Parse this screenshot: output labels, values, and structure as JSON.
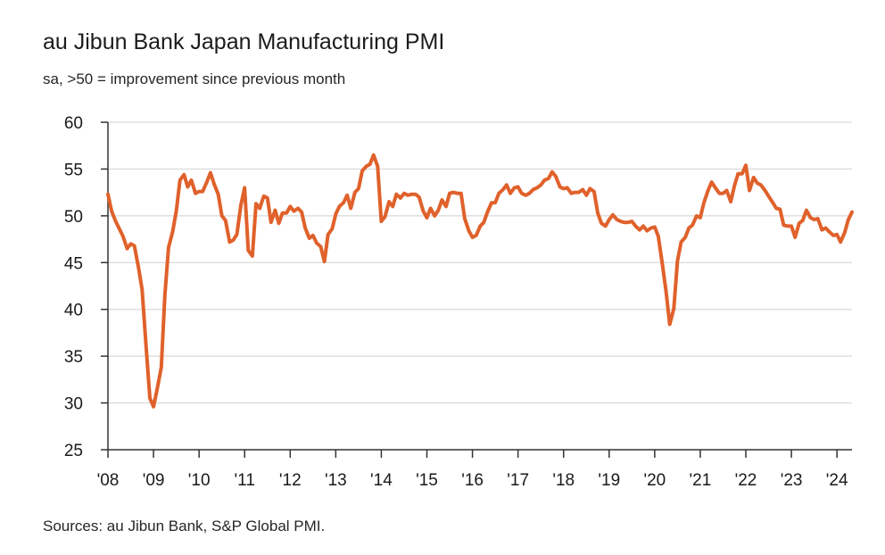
{
  "title": "au Jibun Bank Japan Manufacturing PMI",
  "subtitle": "sa, >50 = improvement since previous month",
  "source": "Sources: au Jibun Bank, S&P Global PMI.",
  "colors": {
    "line": "#e0612b",
    "grid": "#d9d9d9",
    "axis": "#333333"
  },
  "chart_data": {
    "type": "line",
    "title": "au Jibun Bank Japan Manufacturing PMI",
    "subtitle": "sa, >50 = improvement since previous month",
    "xlabel": "",
    "ylabel": "",
    "xlim": [
      2008.0,
      2024.33
    ],
    "ylim": [
      25,
      60
    ],
    "y_ticks": [
      60,
      55,
      50,
      45,
      40,
      35,
      30,
      25
    ],
    "x_ticks": [
      {
        "x": 2008,
        "label": "'08"
      },
      {
        "x": 2009,
        "label": "'09"
      },
      {
        "x": 2010,
        "label": "'10"
      },
      {
        "x": 2011,
        "label": "'11"
      },
      {
        "x": 2012,
        "label": "'12"
      },
      {
        "x": 2013,
        "label": "'13"
      },
      {
        "x": 2014,
        "label": "'14"
      },
      {
        "x": 2015,
        "label": "'15"
      },
      {
        "x": 2016,
        "label": "'16"
      },
      {
        "x": 2017,
        "label": "'17"
      },
      {
        "x": 2018,
        "label": "'18"
      },
      {
        "x": 2019,
        "label": "'19"
      },
      {
        "x": 2020,
        "label": "'20"
      },
      {
        "x": 2021,
        "label": "'21"
      },
      {
        "x": 2022,
        "label": "'22"
      },
      {
        "x": 2023,
        "label": "'23"
      },
      {
        "x": 2024,
        "label": "'24"
      }
    ],
    "grid": true,
    "legend": "none",
    "series": [
      {
        "x": [
          2008.0,
          2008.08,
          2008.17,
          2008.25,
          2008.33,
          2008.42,
          2008.5,
          2008.58,
          2008.67,
          2008.75,
          2008.83,
          2008.92,
          2009.0,
          2009.08,
          2009.17,
          2009.25,
          2009.33,
          2009.42,
          2009.5,
          2009.58,
          2009.67,
          2009.75,
          2009.83,
          2009.92,
          2010.0,
          2010.08,
          2010.17,
          2010.25,
          2010.33,
          2010.42,
          2010.5,
          2010.58,
          2010.67,
          2010.75,
          2010.83,
          2010.92,
          2011.0,
          2011.08,
          2011.17,
          2011.25,
          2011.33,
          2011.42,
          2011.5,
          2011.58,
          2011.67,
          2011.75,
          2011.83,
          2011.92,
          2012.0,
          2012.08,
          2012.17,
          2012.25,
          2012.33,
          2012.42,
          2012.5,
          2012.58,
          2012.67,
          2012.75,
          2012.83,
          2012.92,
          2013.0,
          2013.08,
          2013.17,
          2013.25,
          2013.33,
          2013.42,
          2013.5,
          2013.58,
          2013.67,
          2013.75,
          2013.83,
          2013.92,
          2014.0,
          2014.08,
          2014.17,
          2014.25,
          2014.33,
          2014.42,
          2014.5,
          2014.58,
          2014.67,
          2014.75,
          2014.83,
          2014.92,
          2015.0,
          2015.08,
          2015.17,
          2015.25,
          2015.33,
          2015.42,
          2015.5,
          2015.58,
          2015.67,
          2015.75,
          2015.83,
          2015.92,
          2016.0,
          2016.08,
          2016.17,
          2016.25,
          2016.33,
          2016.42,
          2016.5,
          2016.58,
          2016.67,
          2016.75,
          2016.83,
          2016.92,
          2017.0,
          2017.08,
          2017.17,
          2017.25,
          2017.33,
          2017.42,
          2017.5,
          2017.58,
          2017.67,
          2017.75,
          2017.83,
          2017.92,
          2018.0,
          2018.08,
          2018.17,
          2018.25,
          2018.33,
          2018.42,
          2018.5,
          2018.58,
          2018.67,
          2018.75,
          2018.83,
          2018.92,
          2019.0,
          2019.08,
          2019.17,
          2019.25,
          2019.33,
          2019.42,
          2019.5,
          2019.58,
          2019.67,
          2019.75,
          2019.83,
          2019.92,
          2020.0,
          2020.08,
          2020.17,
          2020.25,
          2020.33,
          2020.42,
          2020.5,
          2020.58,
          2020.67,
          2020.75,
          2020.83,
          2020.92,
          2021.0,
          2021.08,
          2021.17,
          2021.25,
          2021.33,
          2021.42,
          2021.5,
          2021.58,
          2021.67,
          2021.75,
          2021.83,
          2021.92,
          2022.0,
          2022.08,
          2022.17,
          2022.25,
          2022.33,
          2022.42,
          2022.5,
          2022.58,
          2022.67,
          2022.75,
          2022.83,
          2022.92,
          2023.0,
          2023.08,
          2023.17,
          2023.25,
          2023.33,
          2023.42,
          2023.5,
          2023.58,
          2023.67,
          2023.75,
          2023.83,
          2023.92,
          2024.0,
          2024.08,
          2024.17,
          2024.25,
          2024.33
        ],
        "values": [
          52.3,
          50.5,
          49.4,
          48.6,
          47.8,
          46.5,
          47.0,
          46.8,
          44.5,
          42.1,
          36.5,
          30.5,
          29.6,
          31.5,
          33.8,
          41.5,
          46.6,
          48.3,
          50.5,
          53.8,
          54.4,
          53.1,
          53.8,
          52.4,
          52.6,
          52.6,
          53.6,
          54.6,
          53.4,
          52.3,
          50.0,
          49.5,
          47.2,
          47.4,
          48.0,
          51.2,
          53.0,
          46.3,
          45.7,
          51.3,
          50.8,
          52.1,
          51.9,
          49.3,
          50.6,
          49.2,
          50.3,
          50.3,
          51.0,
          50.5,
          50.8,
          50.4,
          48.7,
          47.6,
          47.9,
          47.1,
          46.7,
          45.1,
          48.0,
          48.6,
          50.2,
          51.0,
          51.4,
          52.2,
          50.8,
          52.5,
          52.9,
          54.8,
          55.3,
          55.5,
          56.5,
          55.3,
          49.4,
          49.9,
          51.5,
          51.0,
          52.3,
          51.9,
          52.4,
          52.2,
          52.3,
          52.3,
          52.0,
          50.5,
          49.8,
          50.8,
          50.0,
          50.6,
          51.7,
          51.0,
          52.4,
          52.5,
          52.4,
          52.4,
          49.7,
          48.4,
          47.7,
          47.9,
          48.9,
          49.3,
          50.4,
          51.4,
          51.4,
          52.4,
          52.8,
          53.3,
          52.4,
          53.0,
          53.1,
          52.4,
          52.2,
          52.4,
          52.8,
          53.0,
          53.3,
          53.8,
          54.0,
          54.7,
          54.2,
          53.1,
          52.9,
          53.0,
          52.4,
          52.5,
          52.5,
          52.8,
          52.2,
          52.9,
          52.6,
          50.3,
          49.2,
          48.9,
          49.6,
          50.1,
          49.6,
          49.4,
          49.3,
          49.3,
          49.4,
          48.9,
          48.5,
          48.9,
          48.4,
          48.7,
          48.8,
          47.8,
          44.8,
          41.9,
          38.4,
          40.1,
          45.2,
          47.2,
          47.7,
          48.7,
          49.0,
          50.0,
          49.8,
          51.4,
          52.7,
          53.6,
          53.0,
          52.4,
          52.4,
          52.7,
          51.5,
          53.2,
          54.5,
          54.5,
          55.4,
          52.7,
          54.1,
          53.5,
          53.3,
          52.7,
          52.1,
          51.5,
          50.8,
          50.7,
          49.0,
          48.9,
          48.9,
          47.7,
          49.2,
          49.5,
          50.6,
          49.8,
          49.6,
          49.7,
          48.5,
          48.7,
          48.3,
          47.9,
          48.0,
          47.2,
          48.2,
          49.6,
          50.4
        ]
      }
    ]
  }
}
